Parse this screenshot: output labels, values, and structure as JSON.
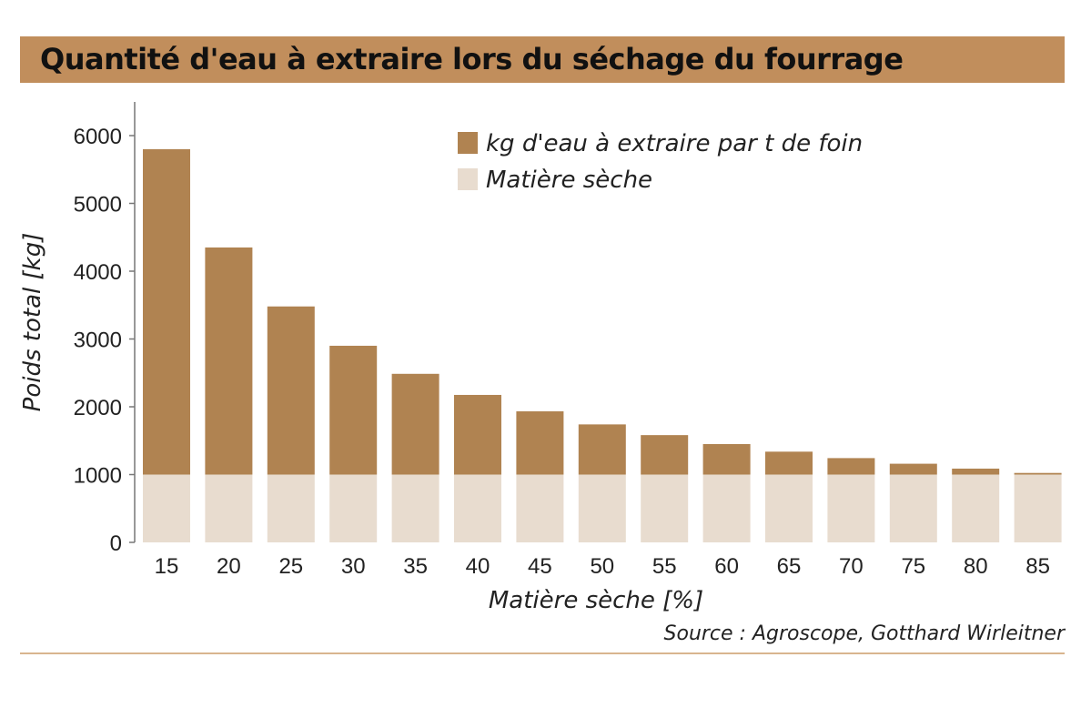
{
  "chart_data": {
    "type": "bar",
    "stacked": true,
    "title": "Quantité d'eau à extraire lors du séchage du fourrage",
    "xlabel": "Matière sèche [%]",
    "ylabel": "Poids total [kg]",
    "ylim": [
      0,
      6500
    ],
    "yticks": [
      0,
      1000,
      2000,
      3000,
      4000,
      5000,
      6000
    ],
    "categories": [
      "15",
      "20",
      "25",
      "30",
      "35",
      "40",
      "45",
      "50",
      "55",
      "60",
      "65",
      "70",
      "75",
      "80",
      "85"
    ],
    "series": [
      {
        "name": "Matière sèche",
        "color": "#e8dccf",
        "values": [
          1000,
          1000,
          1000,
          1000,
          1000,
          1000,
          1000,
          1000,
          1000,
          1000,
          1000,
          1000,
          1000,
          1000,
          1000
        ]
      },
      {
        "name": "kg d'eau à extraire par t de foin",
        "color": "#b08351",
        "values": [
          4800,
          3350,
          2480,
          1900,
          1486,
          1175,
          933,
          740,
          582,
          450,
          338,
          243,
          160,
          88,
          24
        ]
      }
    ],
    "legend_position": "top-right",
    "source": "Source : Agroscope, Gotthard Wirleitner"
  }
}
